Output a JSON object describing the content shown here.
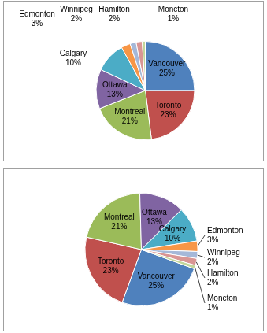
{
  "chart_data": [
    {
      "type": "pie",
      "categories": [
        "Vancouver",
        "Toronto",
        "Montreal",
        "Ottawa",
        "Calgary",
        "Edmonton",
        "Winnipeg",
        "Hamilton",
        "Moncton"
      ],
      "values": [
        25,
        23,
        21,
        13,
        10,
        3,
        2,
        2,
        1
      ],
      "value_labels": [
        "25%",
        "23%",
        "21%",
        "13%",
        "10%",
        "3%",
        "2%",
        "2%",
        "1%"
      ],
      "colors": [
        "#4f81bd",
        "#c0504d",
        "#9bbb59",
        "#8064a2",
        "#4bacc6",
        "#f79646",
        "#a5b8d8",
        "#d99694",
        "#c3d69b"
      ],
      "data_labels": true
    },
    {
      "type": "pie",
      "categories": [
        "Vancouver",
        "Toronto",
        "Montreal",
        "Ottawa",
        "Calgary",
        "Edmonton",
        "Winnipeg",
        "Hamilton",
        "Moncton"
      ],
      "values": [
        25,
        23,
        21,
        13,
        10,
        3,
        2,
        2,
        1
      ],
      "value_labels": [
        "25%",
        "23%",
        "21%",
        "13%",
        "10%",
        "3%",
        "2%",
        "2%",
        "1%"
      ],
      "colors": [
        "#4f81bd",
        "#c0504d",
        "#9bbb59",
        "#8064a2",
        "#4bacc6",
        "#f79646",
        "#a5b8d8",
        "#d99694",
        "#c3d69b"
      ],
      "data_labels": true
    }
  ]
}
